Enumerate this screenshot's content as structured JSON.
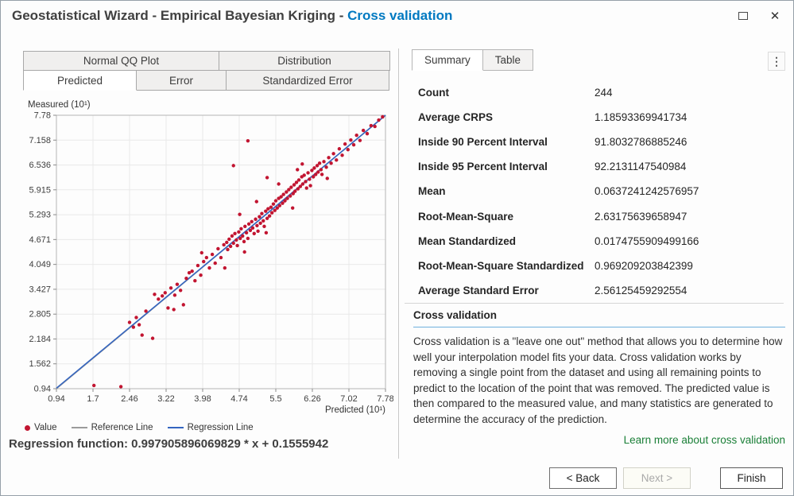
{
  "window": {
    "title_prefix": "Geostatistical Wizard - Empirical Bayesian Kriging - ",
    "title_highlight": "Cross validation",
    "close_glyph": "✕",
    "menu_glyph": "⋮"
  },
  "left_panel": {
    "tab_rows": [
      [
        {
          "label": "Normal QQ Plot",
          "active": false
        },
        {
          "label": "Distribution",
          "active": false
        }
      ],
      [
        {
          "label": "Predicted",
          "active": true
        },
        {
          "label": "Error",
          "active": false
        },
        {
          "label": "Standardized Error",
          "active": false
        }
      ]
    ],
    "regression_text": "Regression function: 0.997905896069829 * x + 0.1555942"
  },
  "chart_data": {
    "type": "scatter",
    "title": "Predicted",
    "xlabel": "Predicted (10¹)",
    "ylabel": "Measured (10¹)",
    "xlim": [
      0.94,
      7.78
    ],
    "ylim": [
      0.94,
      7.78
    ],
    "grid": true,
    "x_ticks": [
      "0.94",
      "1.7",
      "2.46",
      "3.22",
      "3.98",
      "4.74",
      "5.5",
      "6.26",
      "7.02",
      "7.78"
    ],
    "y_ticks": [
      "7.78",
      "7.158",
      "6.536",
      "5.915",
      "5.293",
      "4.671",
      "4.049",
      "3.427",
      "2.805",
      "2.184",
      "1.562",
      "0.94"
    ],
    "legend": [
      {
        "label": "Value",
        "type": "dot",
        "color": "#c21531"
      },
      {
        "label": "Reference Line",
        "type": "line",
        "color": "#9b9b9b"
      },
      {
        "label": "Regression Line",
        "type": "line",
        "color": "#3465c0"
      }
    ],
    "reference_line": {
      "slope": 1,
      "intercept": 0
    },
    "regression_line": {
      "slope": 0.997905896069829,
      "intercept": 0.01555942
    },
    "points": [
      [
        1.72,
        1.02
      ],
      [
        2.28,
        0.99
      ],
      [
        2.46,
        2.6
      ],
      [
        2.54,
        2.48
      ],
      [
        2.6,
        2.72
      ],
      [
        2.66,
        2.54
      ],
      [
        2.72,
        2.28
      ],
      [
        2.8,
        2.88
      ],
      [
        2.94,
        2.2
      ],
      [
        2.98,
        3.3
      ],
      [
        3.06,
        3.18
      ],
      [
        3.14,
        3.26
      ],
      [
        3.2,
        3.34
      ],
      [
        3.26,
        2.96
      ],
      [
        3.32,
        3.46
      ],
      [
        3.38,
        2.92
      ],
      [
        3.45,
        3.55
      ],
      [
        3.52,
        3.4
      ],
      [
        3.58,
        3.04
      ],
      [
        3.64,
        3.7
      ],
      [
        3.7,
        3.84
      ],
      [
        3.4,
        3.28
      ],
      [
        3.76,
        3.88
      ],
      [
        3.82,
        3.64
      ],
      [
        3.88,
        4.02
      ],
      [
        3.94,
        3.78
      ],
      [
        3.96,
        4.34
      ],
      [
        4.0,
        4.12
      ],
      [
        4.06,
        4.22
      ],
      [
        4.12,
        3.96
      ],
      [
        4.18,
        4.3
      ],
      [
        4.24,
        4.08
      ],
      [
        4.3,
        4.44
      ],
      [
        4.36,
        4.22
      ],
      [
        4.42,
        4.54
      ],
      [
        4.44,
        3.96
      ],
      [
        4.48,
        4.6
      ],
      [
        4.5,
        4.42
      ],
      [
        4.53,
        4.68
      ],
      [
        4.56,
        4.5
      ],
      [
        4.59,
        4.76
      ],
      [
        4.62,
        4.58
      ],
      [
        4.65,
        4.82
      ],
      [
        4.68,
        4.66
      ],
      [
        4.7,
        4.52
      ],
      [
        4.73,
        4.86
      ],
      [
        4.75,
        5.3
      ],
      [
        4.76,
        4.7
      ],
      [
        4.78,
        4.94
      ],
      [
        4.81,
        4.76
      ],
      [
        4.84,
        4.62
      ],
      [
        4.85,
        4.36
      ],
      [
        4.86,
        5.0
      ],
      [
        4.89,
        4.84
      ],
      [
        4.92,
        4.7
      ],
      [
        4.94,
        5.06
      ],
      [
        4.97,
        4.9
      ],
      [
        5.0,
        5.12
      ],
      [
        5.02,
        4.96
      ],
      [
        5.05,
        4.82
      ],
      [
        5.08,
        5.18
      ],
      [
        5.1,
        5.62
      ],
      [
        5.11,
        5.02
      ],
      [
        5.13,
        4.88
      ],
      [
        5.16,
        5.24
      ],
      [
        5.18,
        5.08
      ],
      [
        5.21,
        5.32
      ],
      [
        5.24,
        5.14
      ],
      [
        5.26,
        5.0
      ],
      [
        5.29,
        5.38
      ],
      [
        5.3,
        4.84
      ],
      [
        5.32,
        5.2
      ],
      [
        5.34,
        5.44
      ],
      [
        5.37,
        5.26
      ],
      [
        5.4,
        5.48
      ],
      [
        4.62,
        6.52
      ],
      [
        4.92,
        7.14
      ],
      [
        5.32,
        6.22
      ],
      [
        5.56,
        6.06
      ],
      [
        5.42,
        5.34
      ],
      [
        5.45,
        5.56
      ],
      [
        5.48,
        5.4
      ],
      [
        5.5,
        5.64
      ],
      [
        5.53,
        5.46
      ],
      [
        5.56,
        5.7
      ],
      [
        5.58,
        5.52
      ],
      [
        5.61,
        5.74
      ],
      [
        5.64,
        5.58
      ],
      [
        5.66,
        5.8
      ],
      [
        5.69,
        5.64
      ],
      [
        5.72,
        5.86
      ],
      [
        5.74,
        5.7
      ],
      [
        5.77,
        5.92
      ],
      [
        5.8,
        5.76
      ],
      [
        5.82,
        5.98
      ],
      [
        5.85,
        5.46
      ],
      [
        5.86,
        5.82
      ],
      [
        5.88,
        6.04
      ],
      [
        5.9,
        5.88
      ],
      [
        5.93,
        6.1
      ],
      [
        5.95,
        6.42
      ],
      [
        5.96,
        5.94
      ],
      [
        5.98,
        6.16
      ],
      [
        6.01,
        6.0
      ],
      [
        6.04,
        6.24
      ],
      [
        6.05,
        6.56
      ],
      [
        6.06,
        6.06
      ],
      [
        6.09,
        6.28
      ],
      [
        6.12,
        6.12
      ],
      [
        6.14,
        5.96
      ],
      [
        6.17,
        6.34
      ],
      [
        6.2,
        6.18
      ],
      [
        6.22,
        6.02
      ],
      [
        6.25,
        6.4
      ],
      [
        6.28,
        6.24
      ],
      [
        6.3,
        6.46
      ],
      [
        6.33,
        6.3
      ],
      [
        6.36,
        6.52
      ],
      [
        6.38,
        6.36
      ],
      [
        6.41,
        6.58
      ],
      [
        6.44,
        6.42
      ],
      [
        6.46,
        6.3
      ],
      [
        6.5,
        6.62
      ],
      [
        6.55,
        6.48
      ],
      [
        6.57,
        6.2
      ],
      [
        6.6,
        6.72
      ],
      [
        6.65,
        6.58
      ],
      [
        6.7,
        6.82
      ],
      [
        6.76,
        6.66
      ],
      [
        6.82,
        6.94
      ],
      [
        6.88,
        6.78
      ],
      [
        6.94,
        7.06
      ],
      [
        7.0,
        6.92
      ],
      [
        7.06,
        7.16
      ],
      [
        7.12,
        7.04
      ],
      [
        7.18,
        7.28
      ],
      [
        7.25,
        7.15
      ],
      [
        7.32,
        7.4
      ],
      [
        7.4,
        7.32
      ],
      [
        7.48,
        7.52
      ],
      [
        7.56,
        7.5
      ],
      [
        7.64,
        7.66
      ],
      [
        7.72,
        7.74
      ]
    ]
  },
  "right_panel": {
    "tabs": [
      {
        "label": "Summary",
        "active": true
      },
      {
        "label": "Table",
        "active": false
      }
    ],
    "stats": [
      {
        "label": "Count",
        "value": "244"
      },
      {
        "label": "Average CRPS",
        "value": "1.18593369941734"
      },
      {
        "label": "Inside 90 Percent Interval",
        "value": "91.8032786885246"
      },
      {
        "label": "Inside 95 Percent Interval",
        "value": "92.2131147540984"
      },
      {
        "label": "Mean",
        "value": "0.0637241242576957"
      },
      {
        "label": "Root-Mean-Square",
        "value": "2.63175639658947"
      },
      {
        "label": "Mean Standardized",
        "value": "0.0174755909499166"
      },
      {
        "label": "Root-Mean-Square Standardized",
        "value": "0.969209203842399"
      },
      {
        "label": "Average Standard Error",
        "value": "2.56125459292554"
      }
    ],
    "info": {
      "heading": "Cross validation",
      "body": "Cross validation is a \"leave one out\" method that allows you to determine how well your interpolation model fits your data. Cross validation works by removing a single point from the dataset and using all remaining points to predict to the location of the point that was removed. The predicted value is then compared to the measured value, and many statistics are generated to determine the accuracy of the prediction.",
      "link": "Learn more about cross validation"
    }
  },
  "footer": {
    "back": "< Back",
    "next": "Next >",
    "finish": "Finish"
  },
  "colors": {
    "accent_blue": "#0079c1",
    "point": "#c21531",
    "reference_line": "#9b9b9b",
    "regression_line": "#3465c0",
    "link_green": "#1a7f37",
    "heading_rule_blue": "#6fb1dd",
    "grid": "#e9e9e9",
    "plot_border": "#b5b5b5"
  }
}
